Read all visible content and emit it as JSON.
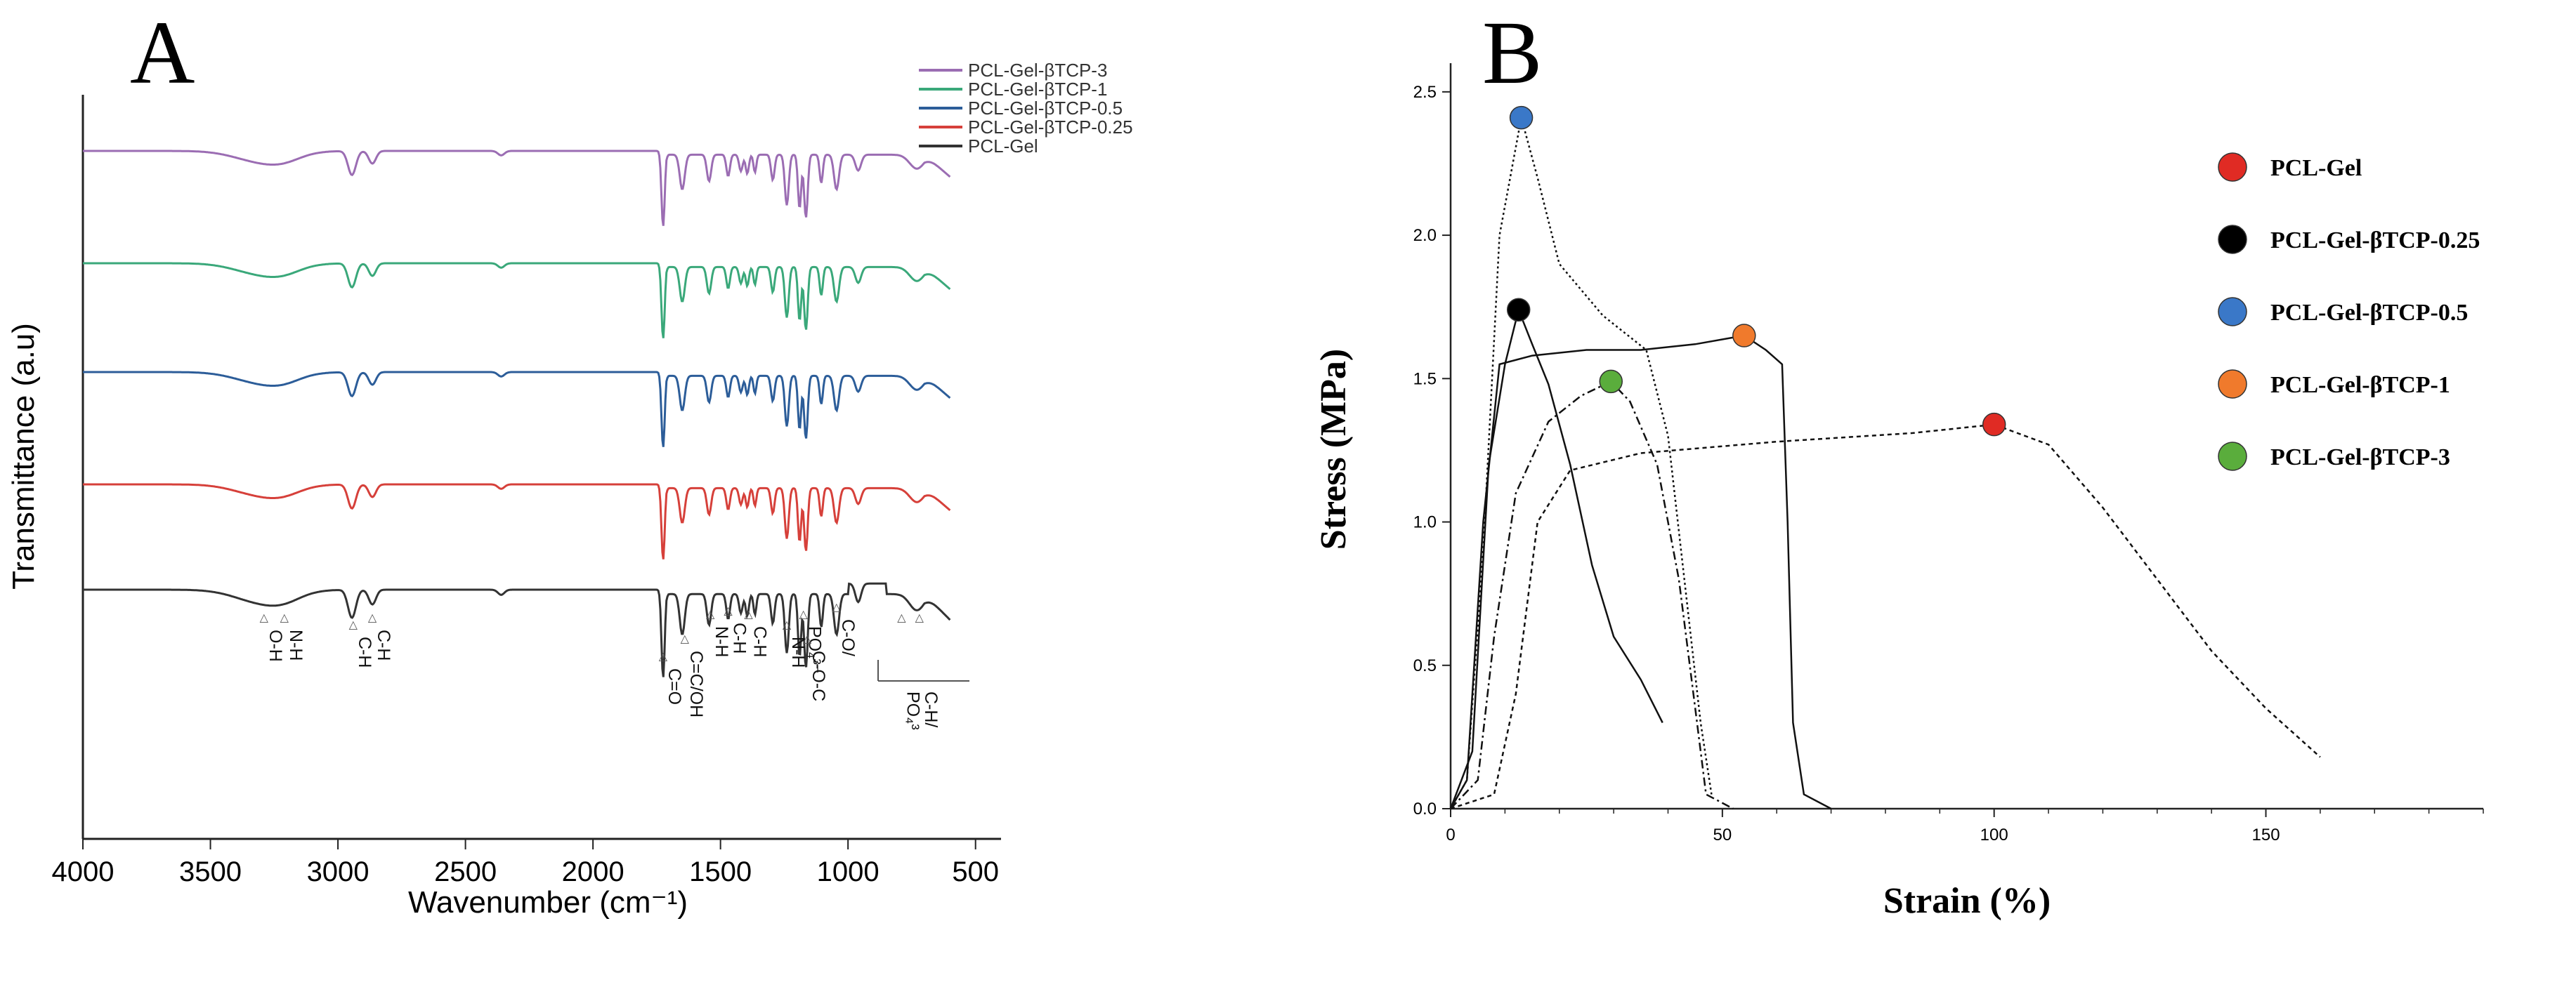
{
  "panel_a": {
    "letter": "A",
    "chart_data": {
      "type": "line",
      "title": "",
      "xlabel": "Wavenumber (cm⁻¹)",
      "ylabel": "Transmittance (a.u)",
      "xlim": [
        4000,
        400
      ],
      "xticks": [
        "4000",
        "3500",
        "3000",
        "2500",
        "2000",
        "1500",
        "1000",
        "500"
      ],
      "legend_position": "top-right",
      "series": [
        {
          "name": "PCL-Gel-βTCP-3",
          "color": "#9b6db3"
        },
        {
          "name": "PCL-Gel-βTCP-1",
          "color": "#3aa87a"
        },
        {
          "name": "PCL-Gel-βTCP-0.5",
          "color": "#2c5d99"
        },
        {
          "name": "PCL-Gel-βTCP-0.25",
          "color": "#d6403a"
        },
        {
          "name": "PCL-Gel",
          "color": "#333333"
        }
      ],
      "annotations": [
        {
          "label": "O-H",
          "wavenumber": 3290
        },
        {
          "label": "N-H",
          "wavenumber": 3210
        },
        {
          "label": "C-H",
          "wavenumber": 2940
        },
        {
          "label": "C-H",
          "wavenumber": 2865
        },
        {
          "label": "C=O",
          "wavenumber": 1725
        },
        {
          "label": "C=C/OH",
          "wavenumber": 1640
        },
        {
          "label": "N-H",
          "wavenumber": 1540
        },
        {
          "label": "C-H",
          "wavenumber": 1470
        },
        {
          "label": "C-H",
          "wavenumber": 1390
        },
        {
          "label": "N-H",
          "wavenumber": 1240
        },
        {
          "label": "PO₄³⁻",
          "wavenumber": 1175
        },
        {
          "label": "C-O-C",
          "wavenumber": 1160
        },
        {
          "label": "C-O/",
          "wavenumber": 1045
        },
        {
          "label": "C-H/",
          "wavenumber": 720
        },
        {
          "label": "PO₄³",
          "wavenumber": 790
        }
      ]
    }
  },
  "panel_b": {
    "letter": "B",
    "chart_data": {
      "type": "line",
      "title": "",
      "xlabel": "Strain (%)",
      "ylabel": "Stress (MPa)",
      "xlim": [
        0,
        190
      ],
      "ylim": [
        0,
        2.6
      ],
      "xticks": [
        "0",
        "50",
        "100",
        "150"
      ],
      "yticks": [
        "0.0",
        "0.5",
        "1.0",
        "1.5",
        "2.0",
        "2.5"
      ],
      "legend_position": "right",
      "series": [
        {
          "name": "PCL-Gel",
          "color": "#e02b24",
          "marker": {
            "strain": 100,
            "stress": 1.34
          },
          "points": [
            [
              0,
              0
            ],
            [
              8,
              0.05
            ],
            [
              12,
              0.4
            ],
            [
              16,
              1.0
            ],
            [
              22,
              1.18
            ],
            [
              35,
              1.24
            ],
            [
              60,
              1.28
            ],
            [
              85,
              1.31
            ],
            [
              100,
              1.34
            ],
            [
              110,
              1.27
            ],
            [
              120,
              1.05
            ],
            [
              130,
              0.8
            ],
            [
              140,
              0.55
            ],
            [
              150,
              0.35
            ],
            [
              160,
              0.18
            ]
          ]
        },
        {
          "name": "PCL-Gel-βTCP-0.25",
          "color": "#000000",
          "marker": {
            "strain": 12.5,
            "stress": 1.74
          },
          "points": [
            [
              0,
              0
            ],
            [
              4,
              0.2
            ],
            [
              7,
              1.2
            ],
            [
              10,
              1.55
            ],
            [
              12.5,
              1.74
            ],
            [
              15,
              1.62
            ],
            [
              18,
              1.48
            ],
            [
              22,
              1.2
            ],
            [
              26,
              0.85
            ],
            [
              30,
              0.6
            ],
            [
              35,
              0.45
            ],
            [
              39,
              0.3
            ]
          ]
        },
        {
          "name": "PCL-Gel-βTCP-0.5",
          "color": "#3a78c8",
          "marker": {
            "strain": 13,
            "stress": 2.41
          },
          "points": [
            [
              0,
              0
            ],
            [
              3,
              0.1
            ],
            [
              6,
              0.9
            ],
            [
              9,
              2.0
            ],
            [
              13,
              2.41
            ],
            [
              16,
              2.2
            ],
            [
              20,
              1.9
            ],
            [
              28,
              1.72
            ],
            [
              36,
              1.6
            ],
            [
              40,
              1.3
            ],
            [
              43,
              0.8
            ],
            [
              46,
              0.3
            ],
            [
              48,
              0.05
            ]
          ]
        },
        {
          "name": "PCL-Gel-βTCP-1",
          "color": "#f07a2c",
          "marker": {
            "strain": 54,
            "stress": 1.65
          },
          "points": [
            [
              0,
              0
            ],
            [
              3,
              0.1
            ],
            [
              6,
              1.0
            ],
            [
              9,
              1.55
            ],
            [
              15,
              1.58
            ],
            [
              25,
              1.6
            ],
            [
              35,
              1.6
            ],
            [
              45,
              1.62
            ],
            [
              54,
              1.65
            ],
            [
              58,
              1.6
            ],
            [
              61,
              1.55
            ],
            [
              62,
              1.0
            ],
            [
              63,
              0.3
            ],
            [
              65,
              0.05
            ],
            [
              70,
              0.0
            ]
          ]
        },
        {
          "name": "PCL-Gel-βTCP-3",
          "color": "#5aad3c",
          "marker": {
            "strain": 29.5,
            "stress": 1.49
          },
          "points": [
            [
              0,
              0
            ],
            [
              5,
              0.1
            ],
            [
              8,
              0.6
            ],
            [
              12,
              1.1
            ],
            [
              18,
              1.35
            ],
            [
              24,
              1.44
            ],
            [
              29.5,
              1.49
            ],
            [
              33,
              1.42
            ],
            [
              38,
              1.2
            ],
            [
              42,
              0.8
            ],
            [
              45,
              0.35
            ],
            [
              47,
              0.05
            ],
            [
              52,
              0.0
            ]
          ]
        }
      ]
    }
  }
}
